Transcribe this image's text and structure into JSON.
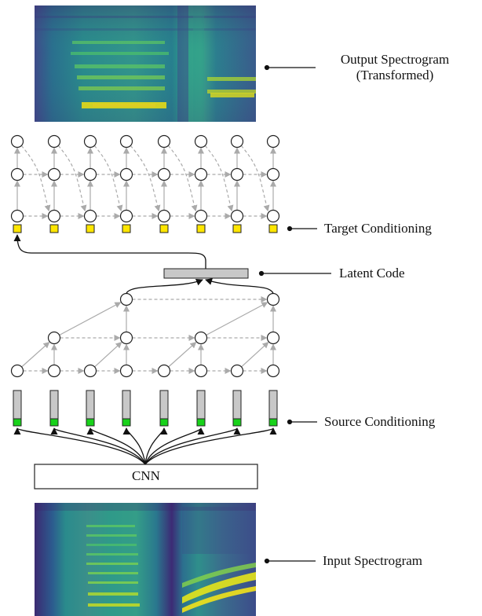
{
  "labels": {
    "output_spectrogram_line1": "Output Spectrogram",
    "output_spectrogram_line2": "(Transformed)",
    "target_conditioning": "Target Conditioning",
    "latent_code": "Latent Code",
    "source_conditioning": "Source Conditioning",
    "cnn": "CNN",
    "input_spectrogram": "Input Spectrogram"
  },
  "colors": {
    "node_stroke": "#222222",
    "edge_gray": "#aaaaaa",
    "edge_black": "#111111",
    "target_square": "#ffe600",
    "source_square": "#18d21a",
    "bar_fill": "#c8c8c8",
    "viridis_dark": "#3b1f66",
    "viridis_teal": "#2a8b8c",
    "viridis_green": "#5cc863",
    "viridis_yellow": "#f2e21a"
  }
}
